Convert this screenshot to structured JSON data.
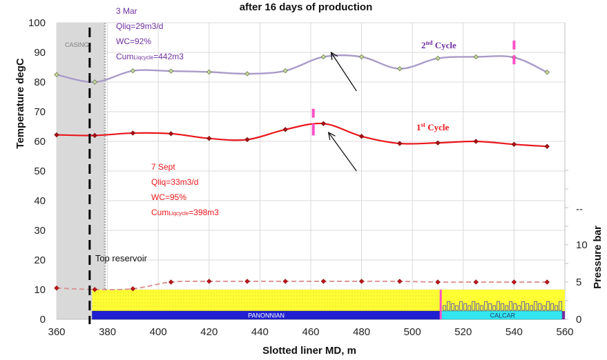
{
  "chart_data": {
    "type": "line",
    "title": "after 16 days of production",
    "xlabel": "Slotted liner MD, m",
    "ylabel": "Temperature degC",
    "y2label": "Pressure bar",
    "xlim": [
      360,
      560
    ],
    "ylim": [
      0,
      100
    ],
    "y2lim": [
      0,
      20
    ],
    "xticks": [
      360,
      380,
      400,
      420,
      440,
      460,
      480,
      500,
      520,
      540,
      560
    ],
    "yticks": [
      0,
      10,
      20,
      30,
      40,
      50,
      60,
      70,
      80,
      90,
      100
    ],
    "y2ticks": [
      0,
      5,
      10
    ],
    "grid": true,
    "colors": {
      "cycle1": "#e8161b",
      "cycle2": "#a99bc8",
      "pressure": "#d99694",
      "casing_fill": "#d9d9d9",
      "formation_yellow": "#ffff33",
      "panonnian_bar": "#2020d0",
      "calcar_bar": "#33e6f0",
      "marker_pink": "#ff4fc8"
    },
    "series": [
      {
        "key": "cycle2",
        "x": [
          360,
          375,
          390,
          405,
          420,
          435,
          450,
          465,
          480,
          495,
          510,
          525,
          540,
          553
        ],
        "values": [
          82.5,
          80,
          83.8,
          83.7,
          83.4,
          82.8,
          83.8,
          88.5,
          88.5,
          84.5,
          88,
          88.5,
          88.3,
          83.3
        ]
      },
      {
        "key": "cycle1",
        "x": [
          360,
          375,
          390,
          405,
          420,
          435,
          450,
          465,
          480,
          495,
          510,
          525,
          540,
          553
        ],
        "values": [
          62.2,
          62,
          62.8,
          62.6,
          61,
          60.6,
          64,
          66,
          61.7,
          59.3,
          59.5,
          60,
          59,
          58.3
        ]
      },
      {
        "key": "pressure",
        "axis": "y2",
        "x": [
          360,
          375,
          390,
          405,
          420,
          435,
          450,
          465,
          480,
          495,
          510,
          525,
          540,
          553
        ],
        "values": [
          4.2,
          4.0,
          4.1,
          5.0,
          5.1,
          5.1,
          5.1,
          5.1,
          5.1,
          5.1,
          5.0,
          5.0,
          5.0,
          5.0
        ]
      }
    ],
    "casing": {
      "label": "CASING",
      "x_range": [
        360,
        379
      ]
    },
    "top_reservoir": {
      "label": "Top reservoir",
      "x": 373
    },
    "formations": [
      {
        "label": "PANONNIAN",
        "x_range": [
          374,
          511
        ]
      },
      {
        "label": "CALCAR",
        "x_range": [
          511,
          560
        ]
      }
    ],
    "annotations": {
      "cycle2": {
        "lines": [
          "3 Mar",
          "Qliq=29m3/d",
          "WC=92%"
        ],
        "cum_prefix": "Cum",
        "cum_sub": "Liqcycle",
        "cum_value": "=442m3"
      },
      "cycle1": {
        "lines": [
          "7 Sept",
          "Qliq=33m3/d",
          "WC=95%"
        ],
        "cum_prefix": "Cum",
        "cum_sub": "Liqcycle",
        "cum_value": "=398m3"
      },
      "cycle2_label": {
        "base": "2",
        "sup": "nd",
        "rest": " Cycle"
      },
      "cycle1_label": {
        "base": "1",
        "sup": "st",
        "rest": " Cycle"
      },
      "y2_dash": "--"
    },
    "arrows": [
      {
        "from": [
          478,
          77
        ],
        "to": [
          468,
          90
        ]
      },
      {
        "from": [
          478,
          50
        ],
        "to": [
          467,
          63
        ]
      }
    ],
    "pink_marks": [
      {
        "x": 461,
        "y_range": [
          71,
          68
        ]
      },
      {
        "x": 461,
        "y_range": [
          66,
          62
        ]
      },
      {
        "x": 540,
        "y_range": [
          94,
          91
        ]
      },
      {
        "x": 540,
        "y_range": [
          89,
          86
        ]
      }
    ]
  }
}
